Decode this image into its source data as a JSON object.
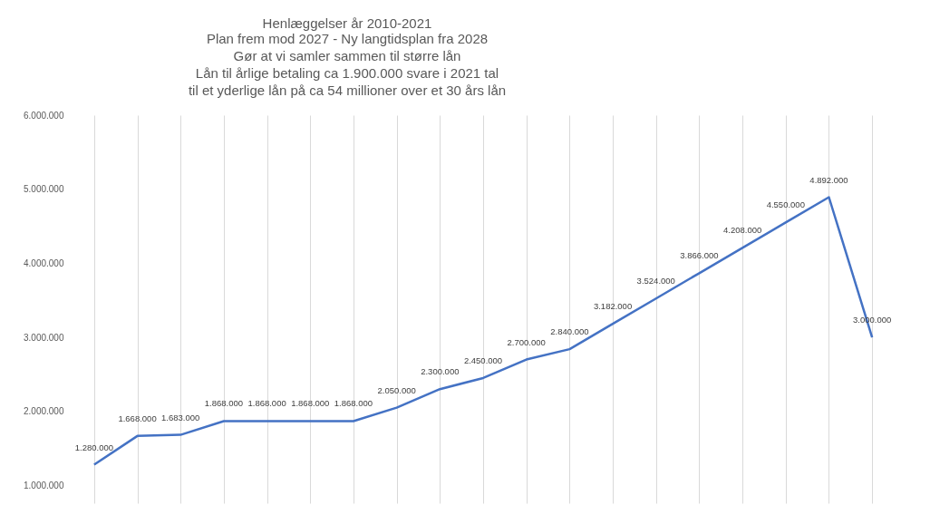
{
  "chart_data": {
    "type": "line",
    "title": "Henlæggelser år 2010-2021",
    "subtitle": "Plan frem mod 2027 - Ny langtidsplan fra 2028\nGør at vi samler sammen til større lån\nLån til årlige betaling ca 1.900.000 svare i 2021 tal\ntil et yderlige lån på ca 54 millioner over et 30 års lån",
    "categories": [
      null,
      null,
      null,
      null,
      null,
      null,
      null,
      null,
      null,
      null,
      null,
      null,
      null,
      null,
      null,
      null,
      null,
      null,
      null
    ],
    "series": [
      {
        "color": "#4472c4",
        "values": [
          1280000,
          1668000,
          1683000,
          1868000,
          1868000,
          1868000,
          1868000,
          2050000,
          2300000,
          2450000,
          2700000,
          2840000,
          3182000,
          3524000,
          3866000,
          4208000,
          4550000,
          4892000,
          3000000
        ],
        "value_labels": [
          "1.280.000",
          "1.668.000",
          "1.683.000",
          "1.868.000",
          "1.868.000",
          "1.868.000",
          "1.868.000",
          "2.050.000",
          "2.300.000",
          "2.450.000",
          "2.700.000",
          "2.840.000",
          "3.182.000",
          "3.524.000",
          "3.866.000",
          "4.208.000",
          "4.550.000",
          "4.892.000",
          "3.000.000"
        ]
      }
    ],
    "ylim": [
      760000,
      6000000
    ],
    "yticks": [
      {
        "value": 1000000,
        "label": "1.000.000"
      },
      {
        "value": 2000000,
        "label": "2.000.000"
      },
      {
        "value": 3000000,
        "label": "3.000.000"
      },
      {
        "value": 4000000,
        "label": "4.000.000"
      },
      {
        "value": 5000000,
        "label": "5.000.000"
      },
      {
        "value": 6000000,
        "label": "6.000.000"
      }
    ],
    "grid": "x",
    "tick_labels": "y",
    "marker": "none",
    "line_style": "solid",
    "legend": false
  }
}
